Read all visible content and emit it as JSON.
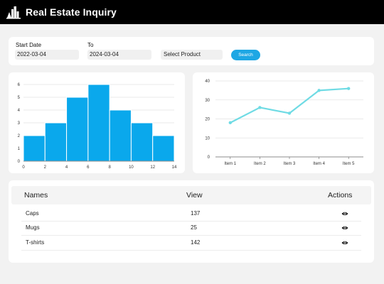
{
  "header": {
    "title": "Real Estate Inquiry",
    "logo_icon": "city-skyline-icon"
  },
  "filters": {
    "start_label": "Start Date",
    "start_value": "2022-03-04",
    "end_label": "To",
    "end_value": "2024-03-04",
    "product_value": "Select Product",
    "search_label": "Search"
  },
  "histogram": {
    "type": "bar",
    "x_ticks": [
      "0",
      "2",
      "4",
      "6",
      "8",
      "10",
      "12",
      "14"
    ],
    "y_ticks": [
      "0",
      "1",
      "2",
      "3",
      "4",
      "5",
      "6"
    ],
    "bins": [
      [
        0,
        2,
        2
      ],
      [
        2,
        4,
        3
      ],
      [
        4,
        6,
        5
      ],
      [
        6,
        8,
        6
      ],
      [
        8,
        10,
        4
      ],
      [
        10,
        12,
        3
      ],
      [
        12,
        14,
        2
      ]
    ],
    "xlim": [
      0,
      14
    ],
    "ylim": [
      0,
      6.5
    ],
    "color": "#0aa8ec",
    "grid": true
  },
  "chart_data": {
    "type": "line",
    "categories": [
      "Item 1",
      "Item 2",
      "Item 3",
      "Item 4",
      "Item 5"
    ],
    "values": [
      18,
      26,
      23,
      35,
      36
    ],
    "y_ticks": [
      "0",
      "10",
      "20",
      "30",
      "40"
    ],
    "ylim": [
      0,
      40
    ],
    "color": "#6fdbe4",
    "grid": true
  },
  "table": {
    "headers": {
      "name": "Names",
      "view": "View",
      "actions": "Actions"
    },
    "rows": [
      {
        "name": "Caps",
        "view": "137",
        "action_icon": "eye-icon"
      },
      {
        "name": "Mugs",
        "view": "25",
        "action_icon": "eye-icon"
      },
      {
        "name": "T-shirts",
        "view": "142",
        "action_icon": "eye-icon"
      }
    ]
  },
  "colors": {
    "accent": "#1ea7e4",
    "topbar": "#000000",
    "background": "#f2f2f2"
  }
}
